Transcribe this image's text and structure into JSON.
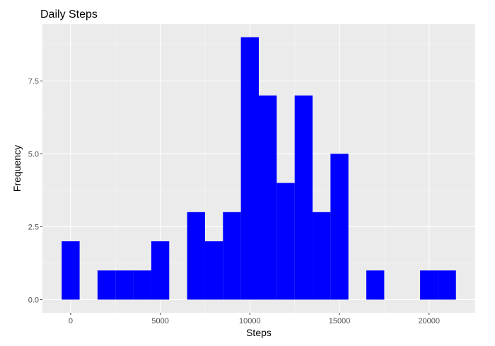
{
  "chart_data": {
    "type": "bar",
    "title": "Daily Steps",
    "xlabel": "Steps",
    "ylabel": "Frequency",
    "bin_width": 1000,
    "bins": [
      {
        "x0": -500,
        "x1": 500,
        "count": 2
      },
      {
        "x0": 500,
        "x1": 1500,
        "count": 0
      },
      {
        "x0": 1500,
        "x1": 2500,
        "count": 1
      },
      {
        "x0": 2500,
        "x1": 3500,
        "count": 1
      },
      {
        "x0": 3500,
        "x1": 4500,
        "count": 1
      },
      {
        "x0": 4500,
        "x1": 5500,
        "count": 2
      },
      {
        "x0": 5500,
        "x1": 6500,
        "count": 0
      },
      {
        "x0": 6500,
        "x1": 7500,
        "count": 3
      },
      {
        "x0": 7500,
        "x1": 8500,
        "count": 2
      },
      {
        "x0": 8500,
        "x1": 9500,
        "count": 3
      },
      {
        "x0": 9500,
        "x1": 10500,
        "count": 9
      },
      {
        "x0": 10500,
        "x1": 11500,
        "count": 7
      },
      {
        "x0": 11500,
        "x1": 12500,
        "count": 4
      },
      {
        "x0": 12500,
        "x1": 13500,
        "count": 7
      },
      {
        "x0": 13500,
        "x1": 14500,
        "count": 3
      },
      {
        "x0": 14500,
        "x1": 15500,
        "count": 5
      },
      {
        "x0": 15500,
        "x1": 16500,
        "count": 0
      },
      {
        "x0": 16500,
        "x1": 17500,
        "count": 1
      },
      {
        "x0": 17500,
        "x1": 18500,
        "count": 0
      },
      {
        "x0": 18500,
        "x1": 19500,
        "count": 0
      },
      {
        "x0": 19500,
        "x1": 20500,
        "count": 1
      },
      {
        "x0": 20500,
        "x1": 21500,
        "count": 1
      }
    ],
    "xlim": [
      -1575,
      22575
    ],
    "ylim": [
      -0.45,
      9.45
    ],
    "x_ticks": [
      0,
      5000,
      10000,
      15000,
      20000
    ],
    "x_tick_labels": [
      "0",
      "5000",
      "10000",
      "15000",
      "20000"
    ],
    "y_ticks": [
      0,
      2.5,
      5,
      7.5
    ],
    "y_tick_labels": [
      "0.0",
      "2.5",
      "5.0",
      "7.5"
    ],
    "grid": true,
    "legend": "none",
    "colors": {
      "bar_fill": "#0000ff",
      "panel_background": "#ebebeb",
      "grid_major": "#ffffff",
      "grid_minor": "#f5f5f5",
      "tick_label": "#4d4d4d",
      "axis_tick": "#333333"
    }
  }
}
